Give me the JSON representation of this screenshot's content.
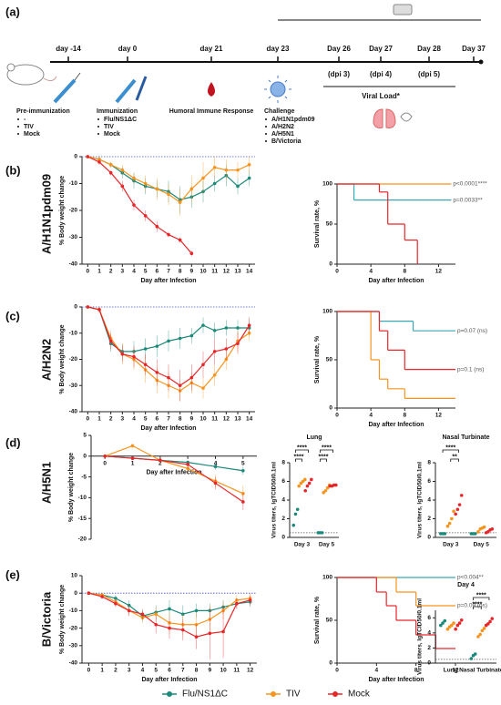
{
  "timeline": {
    "panel_label": "(a)",
    "days": [
      "day -14",
      "day 0",
      "day 21",
      "day 23",
      "Day 26",
      "Day 27",
      "Day 28",
      "Day 37"
    ],
    "dpi": [
      "(dpi 3)",
      "(dpi 4)",
      "(dpi 5)"
    ],
    "viral_load": "Viral Load*",
    "groups": [
      {
        "title": "Pre-immunization",
        "items": [
          "-",
          "TIV",
          "Mock"
        ]
      },
      {
        "title": "Immunization",
        "items": [
          "Flu/NS1ΔC",
          "TIV",
          "Mock"
        ]
      },
      {
        "title": "Humoral Immune Response"
      },
      {
        "title": "Challenge",
        "items": [
          "A/H1N1pdm09",
          "A/H2N2",
          "A/H5N1",
          "B/Victoria"
        ]
      }
    ]
  },
  "panels": [
    {
      "label": "(b)",
      "strain": "A/H1N1pdm09"
    },
    {
      "label": "(c)",
      "strain": "A/H2N2"
    },
    {
      "label": "(d)",
      "strain": "A/H5N1"
    },
    {
      "label": "(e)",
      "strain": "B/Victoria"
    }
  ],
  "chart_data": [
    {
      "type": "line",
      "ylabel": "% Body weight change",
      "xlabel": "Day after Infection",
      "x": [
        0,
        1,
        2,
        3,
        4,
        5,
        6,
        7,
        8,
        9,
        10,
        11,
        12,
        13,
        14
      ],
      "xlim": [
        -0.5,
        14.5
      ],
      "xticks": [
        0,
        1,
        2,
        3,
        4,
        5,
        6,
        7,
        8,
        9,
        10,
        11,
        12,
        13,
        14
      ],
      "ylim": [
        -40,
        0
      ],
      "yticks": [
        0,
        -10,
        -20,
        -30,
        -40
      ],
      "zero_line": true,
      "series": [
        {
          "name": "Flu/NS1ΔC",
          "color": "#1b8a7a",
          "values": [
            0,
            -1,
            -3,
            -6,
            -9,
            -11,
            -12,
            -13,
            -16,
            -15,
            -13,
            -10,
            -7,
            -11,
            -8
          ],
          "errors": [
            0,
            1,
            1,
            2,
            3,
            3,
            3,
            4,
            5,
            4,
            4,
            3,
            4,
            3,
            3
          ]
        },
        {
          "name": "TIV",
          "color": "#f7941d",
          "values": [
            0,
            -1,
            -3,
            -5,
            -8,
            -10,
            -12,
            -14,
            -17,
            -12,
            -8,
            -4,
            -5,
            -5,
            -3
          ],
          "errors": [
            0,
            1,
            1,
            2,
            2,
            3,
            4,
            4,
            5,
            5,
            6,
            4,
            4,
            3,
            3
          ]
        },
        {
          "name": "Mock",
          "color": "#e8262a",
          "values": [
            0,
            -2,
            -6,
            -11,
            -18,
            -22,
            -26,
            -29,
            -31,
            -36,
            null,
            null,
            null,
            null,
            null
          ],
          "errors": [
            0,
            1,
            1,
            2,
            2,
            2,
            2,
            1,
            1,
            1,
            null,
            null,
            null,
            null,
            null
          ]
        }
      ]
    },
    {
      "type": "step",
      "ylabel": "Survival rate, %",
      "xlabel": "Day after Infection",
      "xlim": [
        0,
        14
      ],
      "xticks": [
        0,
        4,
        8,
        12
      ],
      "ylim": [
        0,
        100
      ],
      "yticks": [
        0,
        50,
        100
      ],
      "series": [
        {
          "name": "Flu/NS1ΔC",
          "color": "#3aa7b5",
          "x": [
            0,
            2,
            13.5
          ],
          "values": [
            100,
            80,
            80
          ],
          "label": "p=0.0033**"
        },
        {
          "name": "TIV",
          "color": "#f7941d",
          "x": [
            0,
            13.5
          ],
          "values": [
            100,
            100
          ],
          "label": "p<0.0001****"
        },
        {
          "name": "Mock",
          "color": "#e8262a",
          "x": [
            0,
            5,
            6,
            8,
            9.5
          ],
          "values": [
            100,
            90,
            50,
            30,
            0
          ]
        }
      ]
    },
    {
      "type": "line",
      "ylabel": "% Body weight change",
      "xlabel": "Day after Infection",
      "x": [
        0,
        1,
        2,
        3,
        4,
        5,
        6,
        7,
        8,
        9,
        10,
        11,
        12,
        13,
        14
      ],
      "xlim": [
        -0.5,
        14.5
      ],
      "xticks": [
        0,
        1,
        2,
        3,
        4,
        5,
        6,
        7,
        8,
        9,
        10,
        11,
        12,
        13,
        14
      ],
      "ylim": [
        -40,
        0
      ],
      "yticks": [
        0,
        -10,
        -20,
        -30,
        -40
      ],
      "zero_line": true,
      "series": [
        {
          "name": "Flu/NS1ΔC",
          "color": "#1b8a7a",
          "values": [
            0,
            -1,
            -14,
            -17,
            -17,
            -16,
            -15,
            -13,
            -12,
            -11,
            -7,
            -9,
            -8,
            -8,
            -8
          ],
          "errors": [
            0,
            1,
            3,
            3,
            4,
            4,
            4,
            4,
            4,
            3,
            3,
            3,
            3,
            3,
            3
          ]
        },
        {
          "name": "TIV",
          "color": "#f7941d",
          "values": [
            0,
            -1,
            -12,
            -18,
            -20,
            -24,
            -28,
            -30,
            -32,
            -29,
            -31,
            -26,
            -20,
            -13,
            -10
          ],
          "errors": [
            0,
            1,
            3,
            4,
            4,
            5,
            5,
            5,
            4,
            4,
            4,
            4,
            4,
            4,
            3
          ]
        },
        {
          "name": "Mock",
          "color": "#e8262a",
          "values": [
            0,
            -1,
            -13,
            -18,
            -19,
            -22,
            -25,
            -27,
            -30,
            -27,
            -22,
            -17,
            -16,
            -14,
            -7
          ],
          "errors": [
            0,
            1,
            3,
            3,
            4,
            4,
            5,
            5,
            6,
            5,
            5,
            5,
            4,
            4,
            3
          ]
        }
      ]
    },
    {
      "type": "step",
      "ylabel": "Survival rate, %",
      "xlabel": "Day after Infection",
      "xlim": [
        0,
        14
      ],
      "xticks": [
        0,
        4,
        8,
        12
      ],
      "ylim": [
        0,
        100
      ],
      "yticks": [
        0,
        50,
        100
      ],
      "series": [
        {
          "name": "Flu/NS1ΔC",
          "color": "#3aa7b5",
          "x": [
            0,
            5,
            9,
            14
          ],
          "values": [
            100,
            90,
            80,
            80
          ],
          "label": "p=0.07 (ns)"
        },
        {
          "name": "TIV",
          "color": "#f7941d",
          "x": [
            0,
            4,
            5,
            6,
            8,
            14
          ],
          "values": [
            100,
            50,
            30,
            20,
            10,
            10
          ]
        },
        {
          "name": "Mock",
          "color": "#e8262a",
          "x": [
            0,
            5,
            6,
            8,
            14
          ],
          "values": [
            100,
            80,
            60,
            40,
            40
          ],
          "label": "p=0.1 (ns)"
        }
      ]
    },
    {
      "type": "line",
      "ylabel": "% Body weight change",
      "xlabel": "Day after Infection",
      "x": [
        0,
        1,
        2,
        3,
        4,
        5
      ],
      "xlim": [
        -0.5,
        5.5
      ],
      "xticks": [
        0,
        1,
        2,
        3,
        4,
        5
      ],
      "ylim": [
        -20,
        5
      ],
      "yticks": [
        5,
        0,
        -5,
        -10,
        -15,
        -20
      ],
      "x_axis_position": "zero",
      "series": [
        {
          "name": "Flu/NS1ΔC",
          "color": "#1b8a7a",
          "values": [
            0,
            -0.5,
            -1,
            -1.5,
            -2.5,
            -3.5
          ],
          "errors": [
            0,
            0.3,
            0.4,
            0.5,
            0.8,
            1
          ]
        },
        {
          "name": "TIV",
          "color": "#f7941d",
          "values": [
            0,
            2.5,
            -1,
            -3,
            -6,
            -9
          ],
          "errors": [
            0,
            0.5,
            0.8,
            1,
            1.5,
            2
          ]
        },
        {
          "name": "Mock",
          "color": "#e8262a",
          "values": [
            0,
            -0.5,
            -1,
            -2,
            -6.5,
            -11
          ],
          "errors": [
            0,
            0.4,
            0.6,
            1,
            1.5,
            2
          ]
        }
      ]
    },
    {
      "type": "dot",
      "title": "Lung",
      "ylabel": "Virus titers, lgTCID50/0.1ml",
      "categories": [
        "Day 3",
        "Day 5"
      ],
      "ylim": [
        0,
        8
      ],
      "yticks": [
        0,
        2,
        4,
        6,
        8
      ],
      "lod": 0.5,
      "series": [
        {
          "name": "Flu/NS1ΔC",
          "color": "#1b8a7a",
          "values": [
            [
              1.3,
              2.5,
              3.0
            ],
            [
              0.5,
              0.5,
              0.5
            ]
          ]
        },
        {
          "name": "TIV",
          "color": "#f7941d",
          "values": [
            [
              5.5,
              5.8,
              6.0,
              6.2
            ],
            [
              4.8,
              5.0,
              5.3,
              5.6
            ]
          ]
        },
        {
          "name": "Mock",
          "color": "#e8262a",
          "values": [
            [
              5.0,
              5.5,
              5.8,
              6.2
            ],
            [
              5.5,
              5.5,
              5.6,
              5.6
            ]
          ]
        }
      ],
      "significance": [
        {
          "text": "****",
          "category": "Day 3",
          "between": [
            "Flu/NS1ΔC",
            "TIV"
          ]
        },
        {
          "text": "****",
          "category": "Day 3",
          "between": [
            "Flu/NS1ΔC",
            "Mock"
          ]
        },
        {
          "text": "****",
          "category": "Day 5",
          "between": [
            "Flu/NS1ΔC",
            "TIV"
          ]
        },
        {
          "text": "****",
          "category": "Day 5",
          "between": [
            "Flu/NS1ΔC",
            "Mock"
          ]
        }
      ]
    },
    {
      "type": "dot",
      "title": "Nasal Turbinate",
      "ylabel": "Virus titers, lgTCID50/0.1ml",
      "categories": [
        "Day 3",
        "Day 5"
      ],
      "ylim": [
        0,
        8
      ],
      "yticks": [
        0,
        2,
        4,
        6,
        8
      ],
      "lod": 0.5,
      "series": [
        {
          "name": "Flu/NS1ΔC",
          "color": "#1b8a7a",
          "values": [
            [
              0.4,
              0.4,
              0.4
            ],
            [
              0.4,
              0.4,
              0.4
            ]
          ]
        },
        {
          "name": "TIV",
          "color": "#f7941d",
          "values": [
            [
              1.2,
              1.5,
              2.0,
              2.8
            ],
            [
              0.6,
              0.9,
              1.0,
              1.1
            ]
          ]
        },
        {
          "name": "Mock",
          "color": "#e8262a",
          "values": [
            [
              2.5,
              3.0,
              3.5,
              4.5
            ],
            [
              0.5,
              0.6,
              0.8,
              0.9
            ]
          ]
        }
      ],
      "significance": [
        {
          "text": "**",
          "category": "Day 3",
          "between": [
            "TIV",
            "Mock"
          ]
        },
        {
          "text": "****",
          "category": "Day 3",
          "between": [
            "Flu/NS1ΔC",
            "Mock"
          ]
        }
      ]
    },
    {
      "type": "line",
      "ylabel": "% Body weight change",
      "xlabel": "Day after Infection",
      "x": [
        0,
        1,
        2,
        3,
        4,
        5,
        6,
        7,
        8,
        9,
        10,
        11,
        12
      ],
      "xlim": [
        -0.5,
        12.5
      ],
      "xticks": [
        0,
        1,
        2,
        3,
        4,
        5,
        6,
        7,
        8,
        9,
        10,
        11,
        12
      ],
      "ylim": [
        -40,
        10
      ],
      "yticks": [
        10,
        0,
        -10,
        -20,
        -30,
        -40
      ],
      "zero_line": true,
      "series": [
        {
          "name": "Flu/NS1ΔC",
          "color": "#1b8a7a",
          "values": [
            0,
            -1,
            -3,
            -7,
            -13,
            -11,
            -9,
            -12,
            -10,
            -10,
            -8,
            -6,
            -5
          ],
          "errors": [
            0,
            1,
            2,
            3,
            3,
            4,
            5,
            5,
            4,
            4,
            4,
            3,
            3
          ]
        },
        {
          "name": "TIV",
          "color": "#f7941d",
          "values": [
            0,
            -1,
            -5,
            -10,
            -14,
            -12,
            -17,
            -18,
            -18,
            -15,
            -10,
            -4,
            -3
          ],
          "errors": [
            0,
            1,
            2,
            3,
            3,
            4,
            6,
            6,
            7,
            8,
            5,
            3,
            3
          ]
        },
        {
          "name": "Mock",
          "color": "#e8262a",
          "values": [
            0,
            -2,
            -6,
            -10,
            -12,
            -18,
            -20,
            -21,
            -25,
            -23,
            -22,
            -6,
            -4
          ],
          "errors": [
            0,
            1,
            2,
            3,
            3,
            5,
            6,
            6,
            7,
            15,
            15,
            3,
            3
          ]
        }
      ]
    },
    {
      "type": "step",
      "ylabel": "Survival rate, %",
      "xlabel": "Day after Infection",
      "xlim": [
        0,
        12
      ],
      "xticks": [
        0,
        4,
        8,
        12
      ],
      "ylim": [
        0,
        100
      ],
      "yticks": [
        0,
        50,
        100
      ],
      "series": [
        {
          "name": "Flu/NS1ΔC",
          "color": "#3aa7b5",
          "x": [
            0,
            12
          ],
          "values": [
            100,
            100
          ],
          "label": "p<0.004**"
        },
        {
          "name": "TIV",
          "color": "#f7941d",
          "x": [
            0,
            6,
            8,
            12
          ],
          "values": [
            100,
            83,
            67,
            67
          ],
          "label": "p=0.09 (ns)"
        },
        {
          "name": "Mock",
          "color": "#e8262a",
          "x": [
            0,
            4,
            5,
            6,
            8,
            10,
            12
          ],
          "values": [
            100,
            83,
            67,
            50,
            33,
            17,
            17
          ]
        }
      ]
    },
    {
      "type": "dot",
      "title": "Day 4",
      "ylabel": "Virus titers, lgTCID50/0.1ml",
      "categories": [
        "Lung",
        "Nasal Turbinate"
      ],
      "ylim": [
        0,
        7
      ],
      "yticks": [
        0,
        2,
        4,
        6
      ],
      "lod": 0.5,
      "series": [
        {
          "name": "Flu/NS1ΔC",
          "color": "#1b8a7a",
          "values": [
            [
              5.0,
              5.3,
              5.6
            ],
            [
              0.6,
              1.0,
              1.2
            ]
          ]
        },
        {
          "name": "TIV",
          "color": "#f7941d",
          "values": [
            [
              4.5,
              4.8,
              5.0,
              5.3
            ],
            [
              3.5,
              3.8,
              4.3,
              4.6
            ]
          ]
        },
        {
          "name": "Mock",
          "color": "#e8262a",
          "values": [
            [
              4.5,
              5.0,
              5.3,
              5.7
            ],
            [
              5.0,
              5.2,
              5.5,
              5.9
            ]
          ]
        }
      ],
      "significance": [
        {
          "text": "****",
          "category": "Nasal Turbinate",
          "between": [
            "Flu/NS1ΔC",
            "TIV"
          ]
        },
        {
          "text": "****",
          "category": "Nasal Turbinate",
          "between": [
            "Flu/NS1ΔC",
            "Mock"
          ]
        }
      ]
    }
  ]
}
